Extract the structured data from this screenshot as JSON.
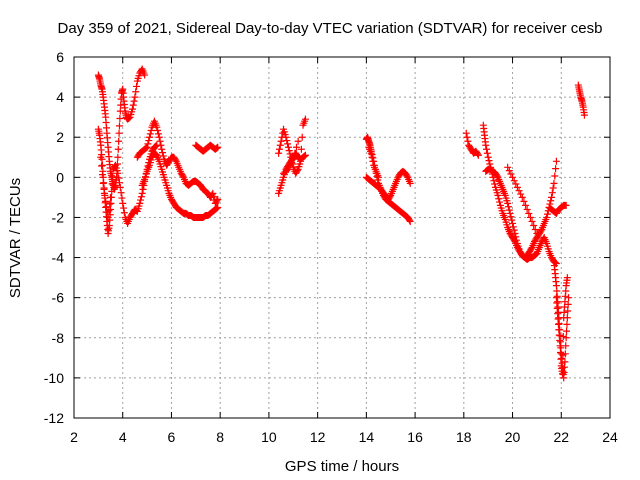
{
  "chart_data": {
    "type": "scatter",
    "title": "Day 359 of 2021, Sidereal Day-to-day VTEC variation (SDTVAR) for receiver cesb",
    "xlabel": "GPS time / hours",
    "ylabel": "SDTVAR / TECUs",
    "xlim": [
      2,
      24
    ],
    "ylim": [
      -12,
      6
    ],
    "xticks": [
      2,
      4,
      6,
      8,
      10,
      12,
      14,
      16,
      18,
      20,
      22,
      24
    ],
    "yticks": [
      -12,
      -10,
      -8,
      -6,
      -4,
      -2,
      0,
      2,
      4,
      6
    ],
    "grid": true,
    "marker": "+",
    "color": "#ff0000",
    "series": [
      {
        "name": "SDTVAR",
        "segments": [
          {
            "x": [
              3.0,
              3.05,
              3.1,
              3.15,
              3.2,
              3.25,
              3.3,
              3.35,
              3.4,
              3.45,
              3.5,
              3.55,
              3.6,
              3.65,
              3.7,
              3.75,
              3.8,
              3.85,
              3.9,
              3.95,
              4.0,
              4.05,
              4.1,
              4.15,
              4.2,
              4.3,
              4.4,
              4.5,
              4.6,
              4.7,
              4.8,
              4.9
            ],
            "y": [
              5.1,
              4.9,
              4.6,
              4.4,
              4.0,
              3.5,
              3.0,
              2.2,
              1.5,
              0.8,
              0.3,
              0.0,
              -0.3,
              -0.6,
              -0.4,
              0.0,
              1.0,
              2.2,
              3.3,
              4.2,
              4.4,
              3.8,
              3.3,
              3.0,
              2.9,
              3.0,
              3.4,
              4.0,
              4.8,
              5.2,
              5.4,
              5.1
            ]
          },
          {
            "x": [
              3.0,
              3.05,
              3.1,
              3.15,
              3.2,
              3.25,
              3.3,
              3.35,
              3.4,
              3.45,
              3.5,
              3.55,
              3.6,
              3.7,
              3.8,
              3.9,
              4.0,
              4.1,
              4.2,
              4.3,
              4.4,
              4.5,
              4.6,
              4.7,
              4.8,
              4.9,
              5.0,
              5.1,
              5.2,
              5.3,
              5.4
            ],
            "y": [
              2.4,
              2.1,
              1.6,
              0.9,
              0.0,
              -0.8,
              -1.5,
              -2.2,
              -2.8,
              -2.4,
              -1.6,
              -0.7,
              0.4,
              0.6,
              0.2,
              -0.5,
              -1.3,
              -2.0,
              -2.3,
              -2.0,
              -1.8,
              -1.6,
              -1.7,
              -1.3,
              -0.8,
              -0.2,
              0.4,
              0.9,
              1.3,
              1.5,
              1.6
            ]
          },
          {
            "x": [
              3.1,
              3.2,
              3.3,
              3.4,
              3.5
            ],
            "y": [
              1.0,
              -0.3,
              -1.2,
              -2.0,
              -1.0
            ]
          },
          {
            "x": [
              4.6,
              4.7,
              4.8,
              4.9,
              5.0,
              5.1,
              5.2,
              5.3,
              5.4,
              5.5,
              5.6,
              5.7,
              5.8,
              5.9,
              6.0,
              6.1,
              6.2,
              6.3,
              6.4,
              6.5,
              6.6,
              6.7,
              6.8,
              6.9,
              7.0,
              7.1,
              7.2,
              7.3,
              7.4,
              7.5,
              7.6,
              7.7,
              7.8,
              7.9
            ],
            "y": [
              1.0,
              1.2,
              1.3,
              1.4,
              1.5,
              2.0,
              2.5,
              2.8,
              2.5,
              2.0,
              1.4,
              0.9,
              0.6,
              0.8,
              1.0,
              1.0,
              0.8,
              0.5,
              0.2,
              0.0,
              -0.3,
              -0.4,
              -0.3,
              -0.2,
              -0.2,
              -0.3,
              -0.4,
              -0.6,
              -0.7,
              -0.8,
              -1.0,
              -0.8,
              -1.3,
              -1.1
            ]
          },
          {
            "x": [
              4.8,
              4.9,
              5.0,
              5.1,
              5.2,
              5.3,
              5.4,
              5.5,
              5.6,
              5.7,
              5.8,
              5.9,
              6.0,
              6.1,
              6.2,
              6.3,
              6.4,
              6.5,
              6.6,
              6.7,
              6.8,
              6.9,
              7.0,
              7.1,
              7.2,
              7.3,
              7.4,
              7.5,
              7.6,
              7.7,
              7.8,
              7.9
            ],
            "y": [
              -0.4,
              -0.1,
              0.3,
              0.6,
              1.0,
              1.2,
              1.1,
              0.8,
              0.4,
              0.0,
              -0.4,
              -0.8,
              -1.1,
              -1.3,
              -1.5,
              -1.6,
              -1.7,
              -1.8,
              -1.8,
              -1.9,
              -1.9,
              -2.0,
              -2.0,
              -2.0,
              -2.0,
              -2.0,
              -1.9,
              -1.9,
              -1.8,
              -1.7,
              -1.6,
              -1.5
            ]
          },
          {
            "x": [
              7.0,
              7.1,
              7.2,
              7.3,
              7.4,
              7.5,
              7.6,
              7.7,
              7.8,
              7.9
            ],
            "y": [
              1.6,
              1.5,
              1.4,
              1.3,
              1.4,
              1.5,
              1.6,
              1.5,
              1.4,
              1.5
            ]
          },
          {
            "x": [
              10.4,
              10.5,
              10.6,
              10.7,
              10.8,
              10.9,
              11.0,
              11.1,
              11.2,
              11.3,
              11.4,
              11.5
            ],
            "y": [
              -0.8,
              -0.4,
              0.0,
              0.4,
              0.6,
              0.8,
              1.0,
              1.2,
              1.0,
              0.9,
              1.0,
              1.1
            ]
          },
          {
            "x": [
              10.4,
              10.5,
              10.6,
              10.7,
              10.8,
              10.9,
              11.0,
              11.1,
              11.2,
              11.3,
              11.4,
              11.5
            ],
            "y": [
              1.2,
              1.8,
              2.4,
              2.0,
              1.5,
              1.0,
              0.5,
              0.2,
              0.4,
              0.8,
              2.6,
              2.9
            ]
          },
          {
            "x": [
              10.6,
              10.8,
              11.0,
              11.2
            ],
            "y": [
              0.2,
              0.4,
              0.9,
              1.8
            ]
          },
          {
            "x": [
              14.0,
              14.05,
              14.1,
              14.15,
              14.2,
              14.3,
              14.4,
              14.5,
              14.6,
              14.7,
              14.8,
              14.9,
              15.0,
              15.1,
              15.2,
              15.3,
              15.4,
              15.5,
              15.6,
              15.7,
              15.8
            ],
            "y": [
              1.9,
              2.0,
              1.8,
              1.6,
              1.3,
              0.8,
              0.2,
              -0.3,
              -0.6,
              -0.9,
              -1.1,
              -1.2,
              -1.3,
              -1.4,
              -1.5,
              -1.6,
              -1.7,
              -1.8,
              -1.9,
              -2.0,
              -2.2
            ]
          },
          {
            "x": [
              14.0,
              14.1,
              14.2,
              14.3,
              14.4,
              14.5,
              14.6,
              14.7,
              14.8,
              14.9,
              15.0,
              15.1,
              15.2,
              15.3,
              15.4,
              15.5,
              15.6,
              15.7,
              15.8
            ],
            "y": [
              0.0,
              -0.1,
              -0.2,
              -0.3,
              -0.4,
              -0.5,
              -0.6,
              -0.8,
              -0.9,
              -1.1,
              -0.9,
              -0.6,
              -0.3,
              0.0,
              0.2,
              0.3,
              0.2,
              0.0,
              -0.3
            ]
          },
          {
            "x": [
              14.1,
              14.2,
              14.3,
              14.4,
              14.5
            ],
            "y": [
              1.5,
              1.2,
              0.6,
              0.3,
              0.0
            ]
          },
          {
            "x": [
              18.1,
              18.2,
              18.3,
              18.4,
              18.5,
              18.6
            ],
            "y": [
              2.2,
              1.6,
              1.4,
              1.2,
              1.3,
              1.1
            ]
          },
          {
            "x": [
              18.8,
              18.85,
              18.9,
              19.0,
              19.1,
              19.2,
              19.3,
              19.4,
              19.5,
              19.6,
              19.7,
              19.8,
              19.9,
              20.0,
              20.1,
              20.2,
              20.3,
              20.4,
              20.5,
              20.6,
              20.7,
              20.8,
              20.9,
              21.0,
              21.1,
              21.2,
              21.3,
              21.4,
              21.5,
              21.6,
              21.7,
              21.8
            ],
            "y": [
              2.6,
              2.1,
              1.6,
              1.0,
              0.5,
              0.0,
              -0.5,
              -0.9,
              -1.4,
              -1.8,
              -2.1,
              -2.5,
              -2.8,
              -3.0,
              -3.2,
              -3.5,
              -3.7,
              -3.9,
              -4.0,
              -4.1,
              -4.0,
              -4.0,
              -3.9,
              -3.8,
              -3.5,
              -3.2,
              -3.0,
              -3.3,
              -3.7,
              -4.0,
              -4.2,
              -4.3
            ]
          },
          {
            "x": [
              18.9,
              19.0,
              19.1,
              19.2,
              19.3,
              19.4,
              19.5,
              19.6,
              19.7,
              19.8,
              19.9,
              20.0,
              20.1,
              20.2,
              20.3,
              20.4,
              20.5,
              20.6,
              20.7,
              20.8,
              20.9,
              21.0,
              21.1,
              21.2,
              21.3,
              21.4,
              21.5,
              21.6,
              21.7,
              21.8
            ],
            "y": [
              0.3,
              0.4,
              0.4,
              0.3,
              0.2,
              0.0,
              -0.3,
              -0.6,
              -0.9,
              -1.3,
              -1.8,
              -2.3,
              -2.8,
              -3.3,
              -3.7,
              -3.9,
              -4.0,
              -3.9,
              -3.7,
              -3.5,
              -3.2,
              -3.0,
              -2.8,
              -2.6,
              -2.3,
              -2.0,
              -1.5,
              -1.0,
              -0.3,
              0.8
            ]
          },
          {
            "x": [
              19.8,
              20.0,
              20.2,
              20.4,
              20.6,
              20.8,
              21.0
            ],
            "y": [
              0.5,
              0.0,
              -0.5,
              -1.0,
              -1.6,
              -2.2,
              -2.8
            ]
          },
          {
            "x": [
              21.7,
              21.75,
              21.8,
              21.85,
              21.9,
              21.95,
              22.0,
              22.05,
              22.1,
              22.15,
              22.2,
              22.25,
              22.3
            ],
            "y": [
              -4.2,
              -4.8,
              -5.4,
              -6.2,
              -7.0,
              -7.9,
              -8.8,
              -9.5,
              -10.0,
              -9.2,
              -8.0,
              -7.0,
              -6.0
            ]
          },
          {
            "x": [
              21.8,
              21.85,
              21.9,
              21.95,
              22.0,
              22.05,
              22.1,
              22.15,
              22.2,
              22.25
            ],
            "y": [
              -6.0,
              -6.8,
              -7.6,
              -8.4,
              -9.4,
              -9.8,
              -7.0,
              -6.2,
              -5.4,
              -5.0
            ]
          },
          {
            "x": [
              21.5,
              21.6,
              21.7,
              21.8,
              21.9,
              22.0,
              22.1,
              22.2
            ],
            "y": [
              -1.5,
              -1.6,
              -1.7,
              -1.8,
              -1.6,
              -1.5,
              -1.4,
              -1.4
            ]
          },
          {
            "x": [
              22.7,
              22.75,
              22.8,
              22.85,
              22.9,
              22.95
            ],
            "y": [
              4.6,
              4.3,
              4.0,
              3.8,
              3.5,
              3.1
            ]
          }
        ]
      }
    ]
  }
}
